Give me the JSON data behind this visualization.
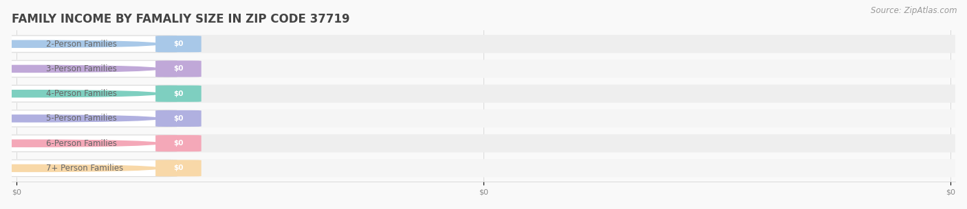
{
  "title": "FAMILY INCOME BY FAMALIY SIZE IN ZIP CODE 37719",
  "source_text": "Source: ZipAtlas.com",
  "categories": [
    "2-Person Families",
    "3-Person Families",
    "4-Person Families",
    "5-Person Families",
    "6-Person Families",
    "7+ Person Families"
  ],
  "values": [
    0,
    0,
    0,
    0,
    0,
    0
  ],
  "bar_colors": [
    "#a8c8e8",
    "#c0a8d8",
    "#7ecfc0",
    "#b0b0e0",
    "#f4a8b8",
    "#f8d8a8"
  ],
  "label_color": "#666666",
  "value_label": "$0",
  "background_color": "#f9f9f9",
  "xlim": [
    0,
    1
  ],
  "title_fontsize": 12,
  "label_fontsize": 8.5,
  "source_fontsize": 8.5,
  "xtick_labels": [
    "$0",
    "$0",
    "$0"
  ],
  "xtick_positions": [
    0.0,
    0.5,
    1.0
  ]
}
